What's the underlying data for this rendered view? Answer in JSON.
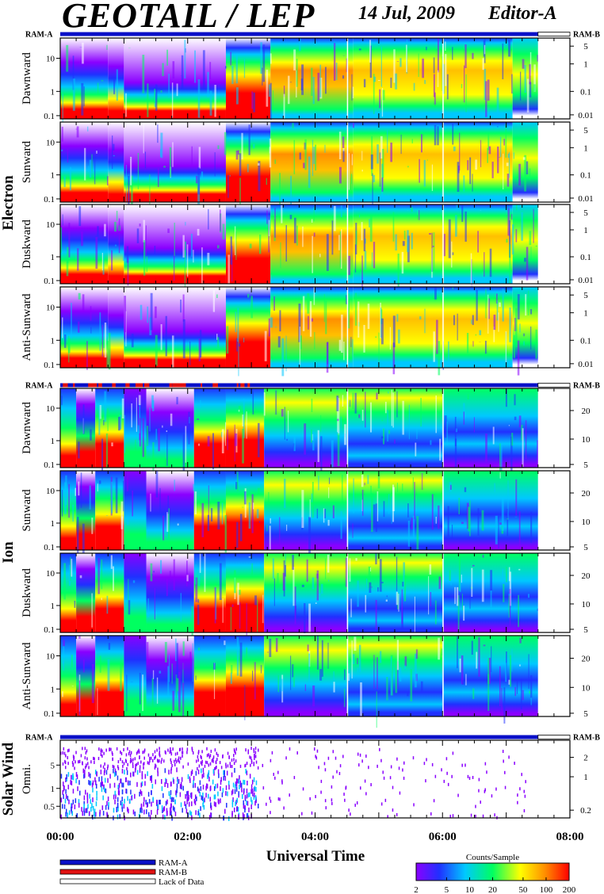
{
  "header": {
    "title": "GEOTAIL / LEP",
    "date": "14 Jul, 2009",
    "editor": "Editor-A"
  },
  "colors": {
    "ram_a": "#0a10c8",
    "ram_b": "#e01010",
    "lack_of_data": "#ffffff"
  },
  "chart_data": {
    "type": "heatmap",
    "xlabel": "Universal Time",
    "x_ticks": [
      "00:00",
      "02:00",
      "04:00",
      "06:00",
      "08:00"
    ],
    "x_range_hours": [
      0,
      8
    ],
    "data_end_hours": 7.5,
    "groups": [
      {
        "name": "Electron",
        "status_left": "RAM-A",
        "status_right": "RAM-B",
        "panels": [
          {
            "label": "Dawnward",
            "left_ticks": [
              "10",
              "1",
              "0.1"
            ],
            "right_ticks": [
              "5",
              "1",
              "0.1",
              "0.01"
            ]
          },
          {
            "label": "Sunward",
            "left_ticks": [
              "10",
              "1",
              "0.1"
            ],
            "right_ticks": [
              "5",
              "1",
              "0.1",
              "0.01"
            ]
          },
          {
            "label": "Duskward",
            "left_ticks": [
              "10",
              "1",
              "0.1"
            ],
            "right_ticks": [
              "5",
              "1",
              "0.1",
              "0.01"
            ]
          },
          {
            "label": "Anti-Sunward",
            "left_ticks": [
              "10",
              "1",
              "0.1"
            ],
            "right_ticks": [
              "5",
              "1",
              "0.1",
              "0.01"
            ]
          }
        ]
      },
      {
        "name": "Ion",
        "status_left": "RAM-A",
        "status_right": "RAM-B",
        "panels": [
          {
            "label": "Dawnward",
            "left_ticks": [
              "10",
              "1",
              "0.1"
            ],
            "right_ticks": [
              "20",
              "10",
              "5"
            ]
          },
          {
            "label": "Sunward",
            "left_ticks": [
              "10",
              "1",
              "0.1"
            ],
            "right_ticks": [
              "20",
              "10",
              "5"
            ]
          },
          {
            "label": "Duskward",
            "left_ticks": [
              "10",
              "1",
              "0.1"
            ],
            "right_ticks": [
              "20",
              "10",
              "5"
            ]
          },
          {
            "label": "Anti-Sunward",
            "left_ticks": [
              "10",
              "1",
              "0.1"
            ],
            "right_ticks": [
              "20",
              "10",
              "5"
            ]
          }
        ]
      },
      {
        "name": "Solar Wind",
        "status_left": "RAM-A",
        "status_right": "RAM-B",
        "panels": [
          {
            "label": "Omni.",
            "left_ticks": [
              "5",
              "1",
              "0.5"
            ],
            "right_ticks": [
              "2",
              "1",
              "0.2"
            ]
          }
        ]
      }
    ],
    "legend": {
      "entries": [
        "RAM-A",
        "RAM-B",
        "Lack of Data"
      ]
    },
    "colorbar": {
      "title": "Counts/Sample",
      "ticks": [
        "2",
        "5",
        "10",
        "20",
        "50",
        "100",
        "200"
      ],
      "tick_values": [
        2,
        5,
        10,
        20,
        50,
        100,
        200
      ],
      "range": [
        2,
        200
      ],
      "scale": "log"
    }
  }
}
